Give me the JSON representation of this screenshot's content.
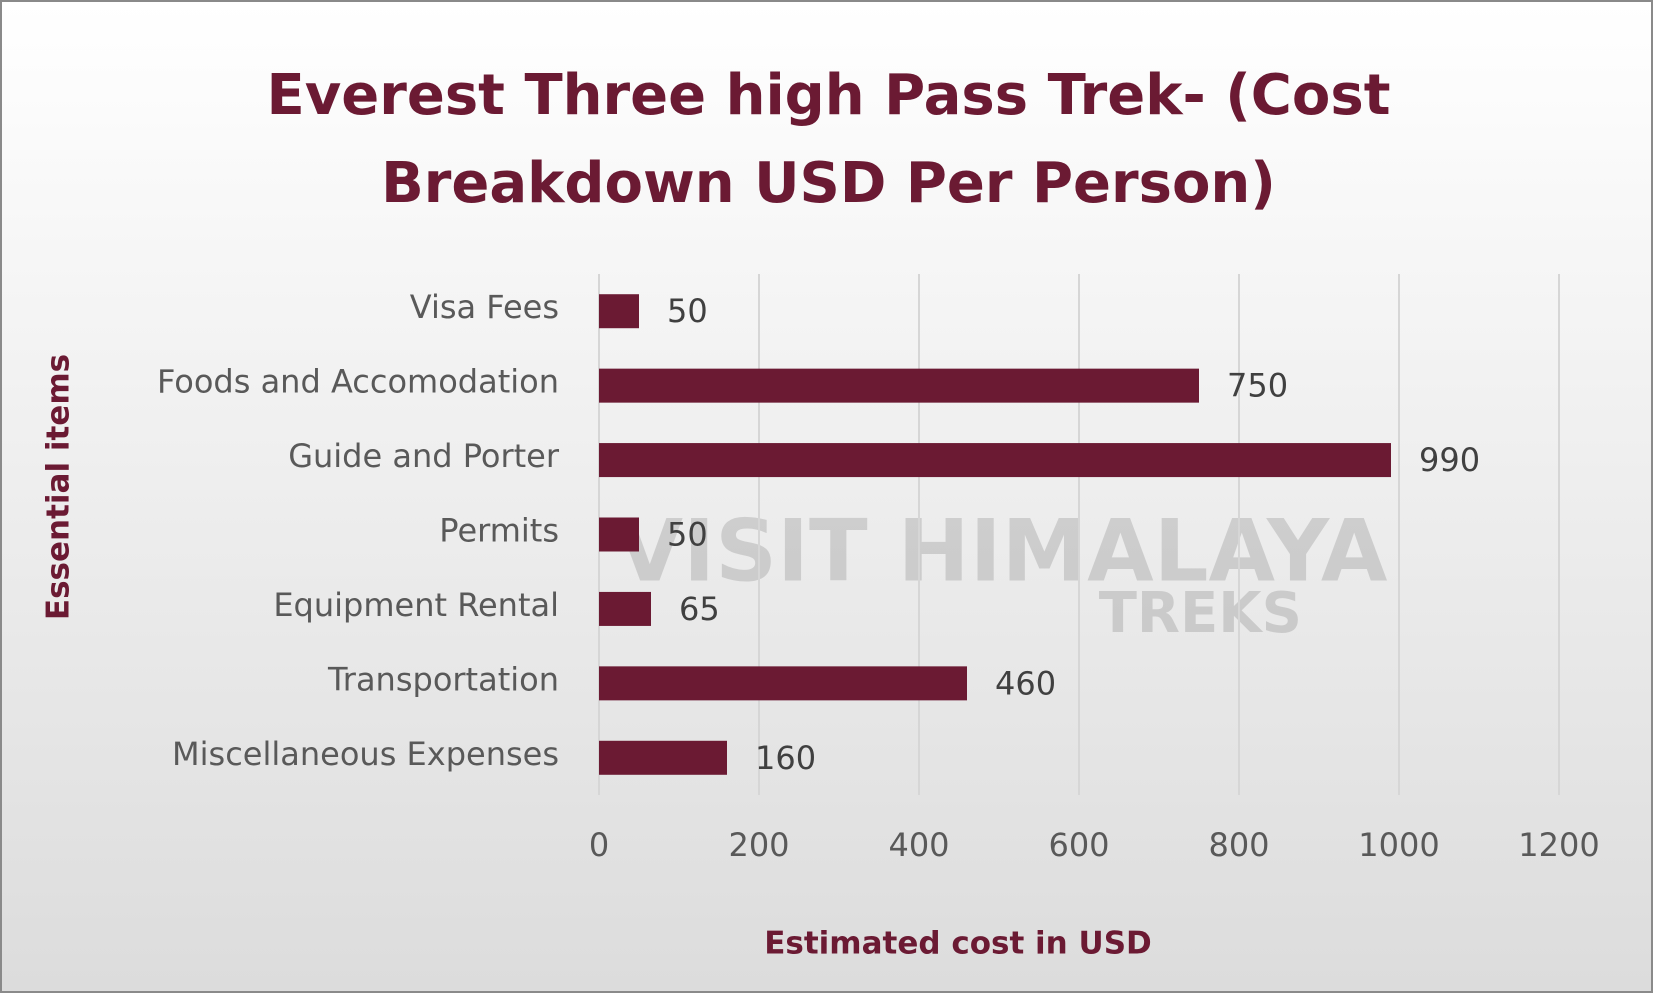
{
  "chart_data": {
    "type": "bar",
    "orientation": "horizontal",
    "title": "Everest Three high Pass Trek- (Cost Breakdown USD Per Person)",
    "x_label": "Estimated cost in USD",
    "y_label": "Essential items",
    "categories": [
      "Visa Fees",
      "Foods and Accomodation",
      "Guide and Porter",
      "Permits",
      "Equipment Rental",
      "Transportation",
      "Miscellaneous Expenses"
    ],
    "values": [
      50,
      750,
      990,
      50,
      65,
      460,
      160
    ],
    "color": "#6b1a33",
    "xlim": [
      0,
      1200
    ],
    "xticks": [
      0,
      200,
      400,
      600,
      800,
      1000,
      1200
    ],
    "grid": true,
    "watermark": [
      "VISIT HIMALAYA",
      "TREKS"
    ]
  }
}
